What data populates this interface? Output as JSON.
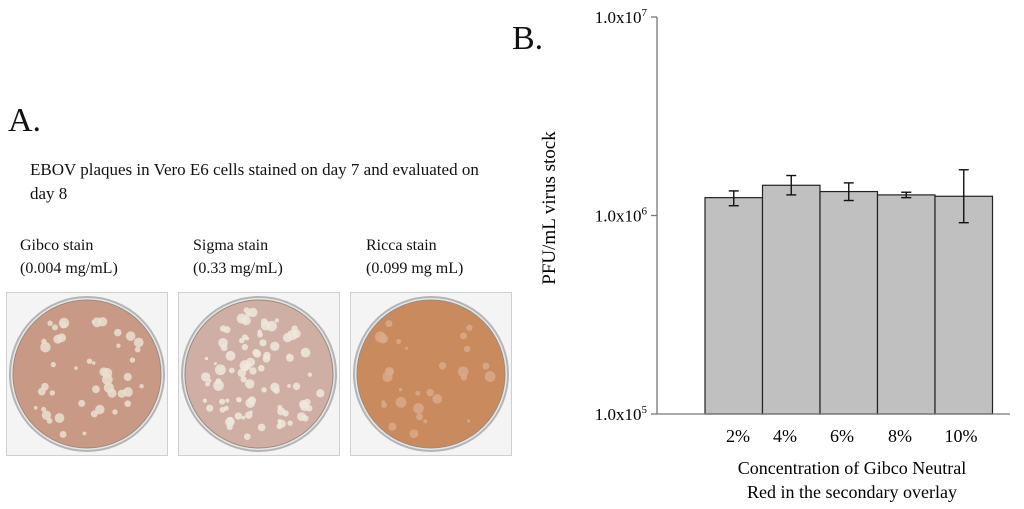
{
  "panel_a": {
    "label": "A.",
    "caption": "EBOV plaques in Vero E6 cells stained on day 7 and evaluated on day 8",
    "plates": [
      {
        "name": "Gibco stain",
        "conc": "(0.004 mg/mL)",
        "dish_color": "#c89a86",
        "plaque_color": "#eadfcf",
        "plaques": 46
      },
      {
        "name": "Sigma stain",
        "conc": "(0.33 mg/mL)",
        "dish_color": "#cfaea4",
        "plaque_color": "#efe7dc",
        "plaques": 90
      },
      {
        "name": "Ricca stain",
        "conc": "(0.099 mg mL)",
        "dish_color": "#c98a5e",
        "plaque_color": "#d9a98a",
        "plaques": 30
      }
    ]
  },
  "panel_b": {
    "label": "B."
  },
  "chart_data": {
    "type": "bar",
    "categories": [
      "2%",
      "4%",
      "6%",
      "8%",
      "10%"
    ],
    "values": [
      1230000,
      1420000,
      1320000,
      1270000,
      1250000
    ],
    "error_low": [
      1120000,
      1270000,
      1190000,
      1230000,
      920000
    ],
    "error_high": [
      1330000,
      1590000,
      1460000,
      1310000,
      1700000
    ],
    "y_scale": "log",
    "ylim": [
      100000,
      10000000
    ],
    "yticks": [
      100000,
      1000000,
      10000000
    ],
    "ytick_labels": [
      {
        "mantissa": "1.0x10",
        "exp": "5"
      },
      {
        "mantissa": "1.0x10",
        "exp": "6"
      },
      {
        "mantissa": "1.0x10",
        "exp": "7"
      }
    ],
    "ylabel": "PFU/mL virus stock",
    "xlabel_lines": [
      "Concentration of Gibco Neutral",
      "Red in the secondary overlay"
    ],
    "bar_color": "#c0c0c0",
    "bar_edge": "#222222",
    "grid": false,
    "legend": "none"
  }
}
